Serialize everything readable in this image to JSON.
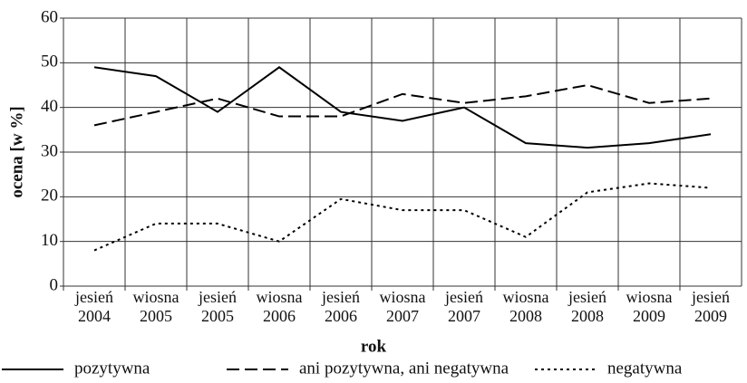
{
  "chart_data": {
    "type": "line",
    "xlabel": "rok",
    "ylabel": "ocena [w %]",
    "categories": [
      "jesień 2004",
      "wiosna 2005",
      "jesień 2005",
      "wiosna 2006",
      "jesień 2006",
      "wiosna 2007",
      "jesień 2007",
      "wiosna 2008",
      "jesień 2008",
      "wiosna 2009",
      "jesień 2009"
    ],
    "series": [
      {
        "name": "pozytywna",
        "color": "#000000",
        "dash": "solid",
        "values": [
          49,
          47,
          39,
          49,
          39,
          37,
          40,
          32,
          31,
          32,
          34
        ]
      },
      {
        "name": "ani pozytywna, ani negatywna",
        "color": "#000000",
        "dash": "dashed",
        "values": [
          36,
          39,
          42,
          38,
          38,
          43,
          41,
          42.5,
          45,
          41,
          42
        ]
      },
      {
        "name": "negatywna",
        "color": "#000000",
        "dash": "dotted",
        "values": [
          8,
          14,
          14,
          10,
          19.5,
          17,
          17,
          11,
          21,
          23,
          22
        ]
      }
    ],
    "ylim": [
      0,
      60
    ],
    "yticks": [
      0,
      10,
      20,
      30,
      40,
      50,
      60
    ],
    "grid": true,
    "legend": "bottom"
  }
}
